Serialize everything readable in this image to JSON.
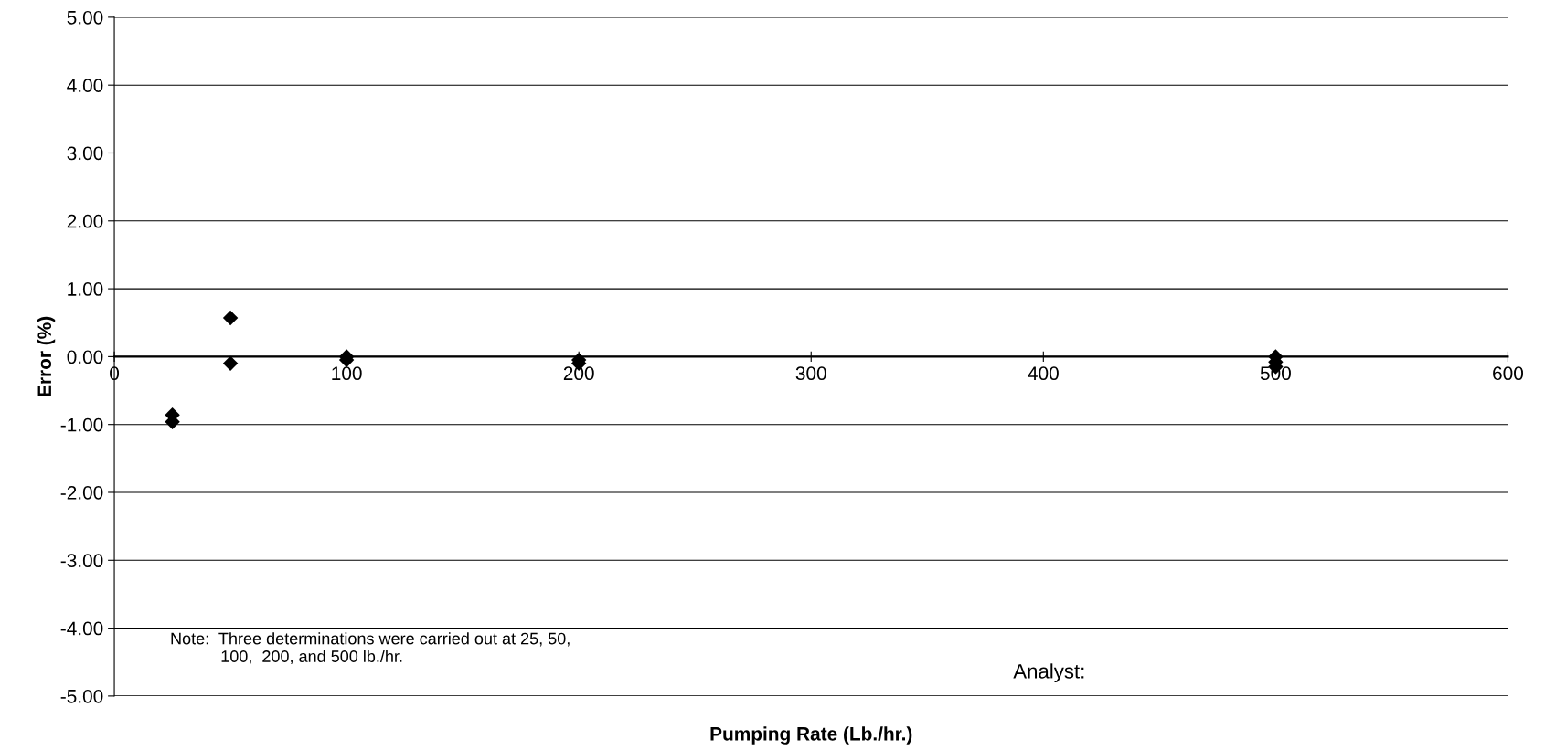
{
  "chart_data": {
    "type": "scatter",
    "xlabel": "Pumping Rate (Lb./hr.)",
    "ylabel": "Error (%)",
    "x": [
      25,
      25,
      50,
      50,
      100,
      100,
      200,
      200,
      500,
      500,
      500
    ],
    "series": [
      {
        "color": "#000000",
        "values": [
          -0.86,
          -0.96,
          0.57,
          -0.1,
          0.0,
          -0.05,
          -0.05,
          -0.1,
          0.0,
          -0.08,
          -0.15
        ]
      }
    ],
    "marker": "diamond",
    "xlim": [
      0,
      600
    ],
    "xticks": [
      0,
      100,
      200,
      300,
      400,
      500,
      600
    ],
    "ylim": [
      -5,
      5
    ],
    "yticks": [
      {
        "value": -5,
        "label": "-5.00"
      },
      {
        "value": -4,
        "label": "-4.00"
      },
      {
        "value": -3,
        "label": "-3.00"
      },
      {
        "value": -2,
        "label": "-2.00"
      },
      {
        "value": -1,
        "label": "-1.00"
      },
      {
        "value": 0,
        "label": "0.00"
      },
      {
        "value": 1,
        "label": "1.00"
      },
      {
        "value": 2,
        "label": "2.00"
      },
      {
        "value": 3,
        "label": "3.00"
      },
      {
        "value": 4,
        "label": "4.00"
      },
      {
        "value": 5,
        "label": "5.00"
      }
    ],
    "grid": "y",
    "legend": false,
    "annotations": [
      "Note:  Three determinations were carried out at 25, 50,\n           100,  200, and 500 lb./hr.",
      "Analyst:"
    ]
  }
}
